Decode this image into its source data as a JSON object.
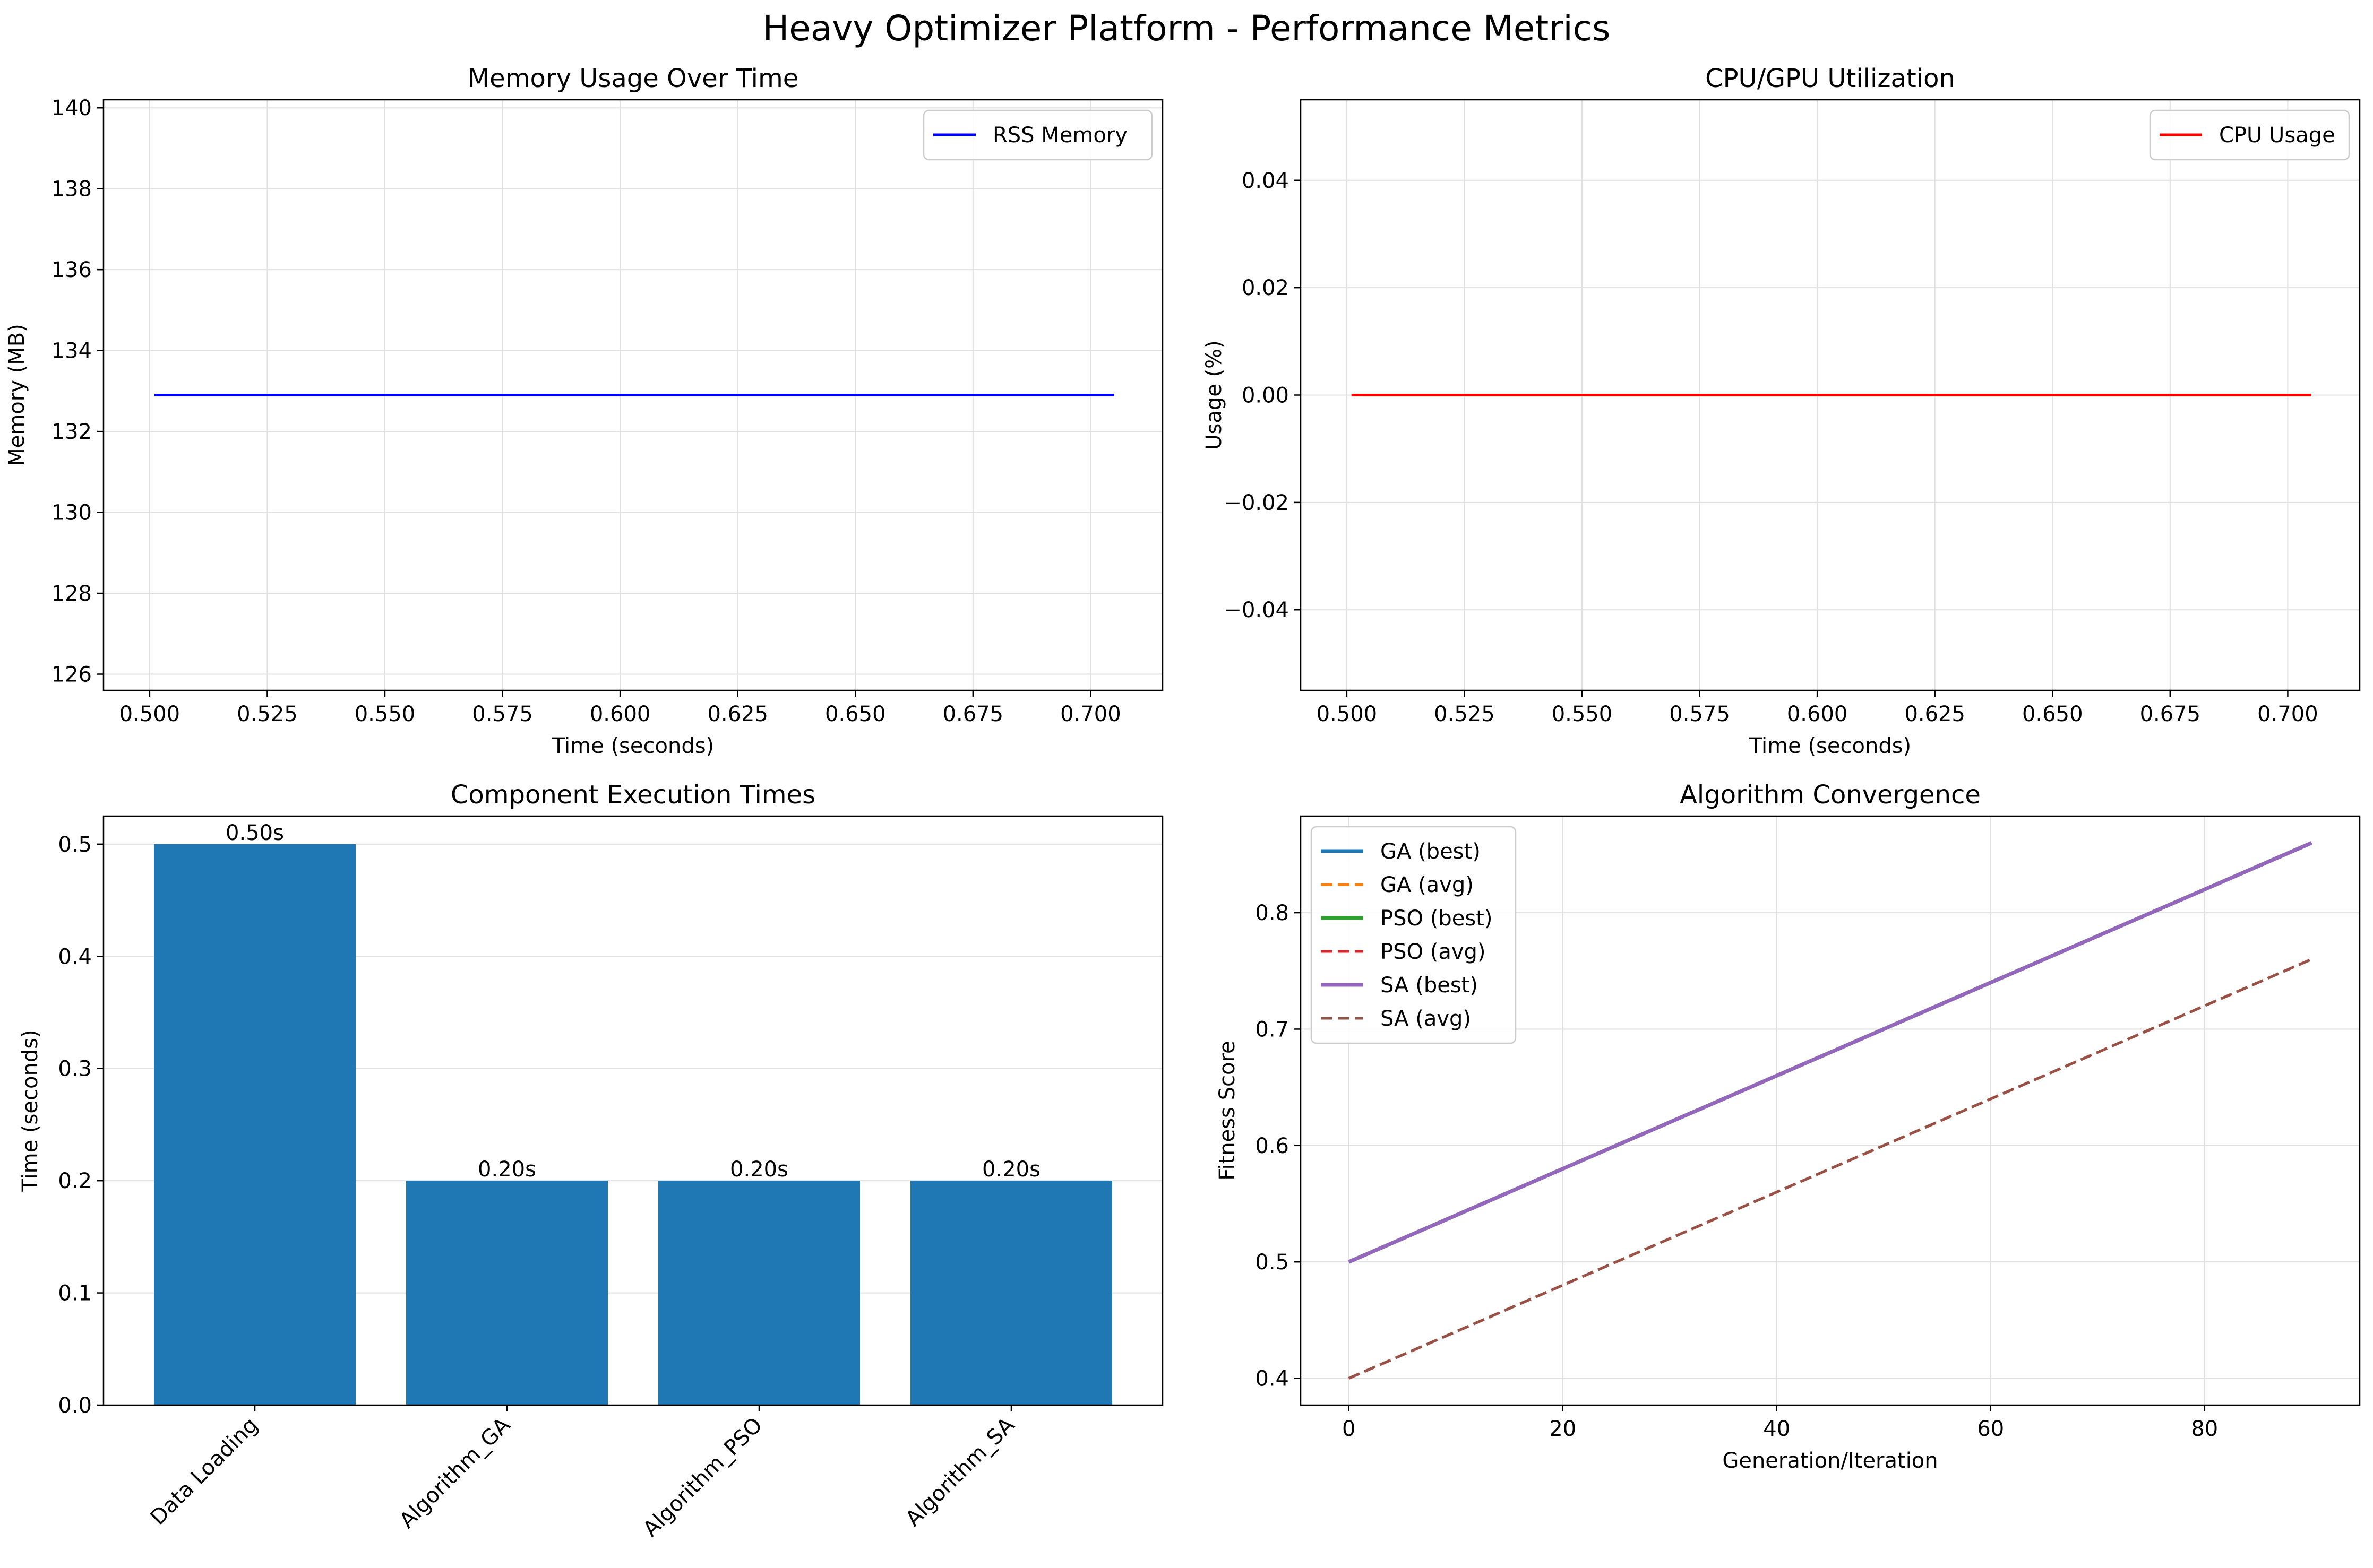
{
  "figure": {
    "title": "Heavy Optimizer Platform - Performance Metrics"
  },
  "chart_data": [
    {
      "type": "line",
      "title": "Memory Usage Over Time",
      "xlabel": "Time (seconds)",
      "ylabel": "Memory (MB)",
      "xlim": [
        0.4902,
        0.7153
      ],
      "ylim": [
        125.6,
        140.2
      ],
      "xticks": [
        "0.500",
        "0.525",
        "0.550",
        "0.575",
        "0.600",
        "0.625",
        "0.650",
        "0.675",
        "0.700"
      ],
      "yticks": [
        "126",
        "128",
        "130",
        "132",
        "134",
        "136",
        "138",
        "140"
      ],
      "grid": true,
      "legend_position": "top-right",
      "series": [
        {
          "name": "RSS Memory",
          "color": "#0000ff",
          "style": "solid",
          "x": [
            0.501,
            0.705
          ],
          "y": [
            132.9,
            132.9
          ]
        }
      ]
    },
    {
      "type": "line",
      "title": "CPU/GPU Utilization",
      "xlabel": "Time (seconds)",
      "ylabel": "Usage (%)",
      "xlim": [
        0.4902,
        0.7153
      ],
      "ylim": [
        -0.055,
        0.055
      ],
      "xticks": [
        "0.500",
        "0.525",
        "0.550",
        "0.575",
        "0.600",
        "0.625",
        "0.650",
        "0.675",
        "0.700"
      ],
      "yticks": [
        "−0.04",
        "−0.02",
        "0.00",
        "0.02",
        "0.04"
      ],
      "grid": true,
      "legend_position": "top-right",
      "series": [
        {
          "name": "CPU Usage",
          "color": "#ff0000",
          "style": "solid",
          "x": [
            0.501,
            0.705
          ],
          "y": [
            0.0,
            0.0
          ]
        }
      ]
    },
    {
      "type": "bar",
      "title": "Component Execution Times",
      "xlabel": "",
      "ylabel": "Time (seconds)",
      "ylim": [
        0,
        0.525
      ],
      "yticks": [
        "0.0",
        "0.1",
        "0.2",
        "0.3",
        "0.4",
        "0.5"
      ],
      "grid": true,
      "color": "#1f77b4",
      "categories": [
        "Data Loading",
        "Algorithm_GA",
        "Algorithm_PSO",
        "Algorithm_SA"
      ],
      "values": [
        0.5,
        0.2,
        0.2,
        0.2
      ],
      "data_labels": [
        "0.50s",
        "0.20s",
        "0.20s",
        "0.20s"
      ]
    },
    {
      "type": "line",
      "title": "Algorithm Convergence",
      "xlabel": "Generation/Iteration",
      "ylabel": "Fitness Score",
      "xlim": [
        -4.5,
        94.5
      ],
      "ylim": [
        0.377,
        0.883
      ],
      "xticks": [
        "0",
        "20",
        "40",
        "60",
        "80"
      ],
      "yticks": [
        "0.4",
        "0.5",
        "0.6",
        "0.7",
        "0.8"
      ],
      "grid": true,
      "legend_position": "top-left",
      "series": [
        {
          "name": "GA (best)",
          "color": "#1f77b4",
          "style": "solid",
          "x": [
            0,
            90
          ],
          "y": [
            0.5,
            0.86
          ]
        },
        {
          "name": "GA (avg)",
          "color": "#ff7f0e",
          "style": "dashed",
          "x": [
            0,
            90
          ],
          "y": [
            0.4,
            0.76
          ]
        },
        {
          "name": "PSO (best)",
          "color": "#2ca02c",
          "style": "solid",
          "x": [
            0,
            90
          ],
          "y": [
            0.5,
            0.86
          ]
        },
        {
          "name": "PSO (avg)",
          "color": "#d62728",
          "style": "dashed",
          "x": [
            0,
            90
          ],
          "y": [
            0.4,
            0.76
          ]
        },
        {
          "name": "SA (best)",
          "color": "#9467bd",
          "style": "solid",
          "x": [
            0,
            90
          ],
          "y": [
            0.5,
            0.86
          ]
        },
        {
          "name": "SA (avg)",
          "color": "#8c564b",
          "style": "dashed",
          "x": [
            0,
            90
          ],
          "y": [
            0.4,
            0.76
          ]
        }
      ]
    }
  ]
}
